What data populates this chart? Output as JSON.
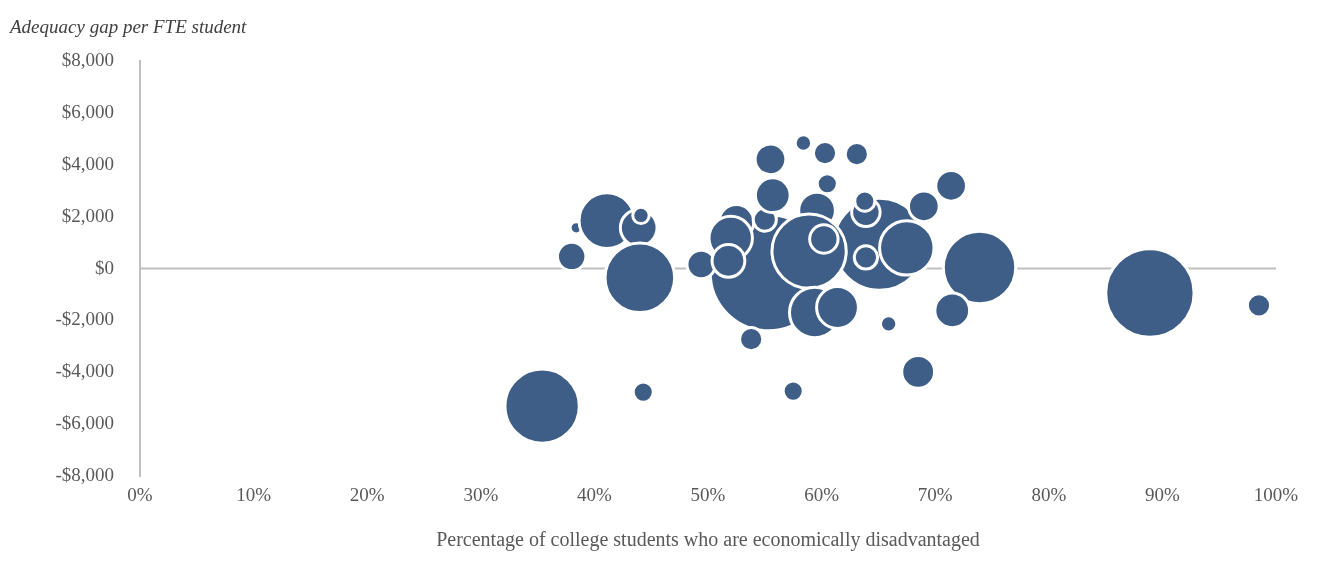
{
  "chart_data": {
    "type": "bubble",
    "title": "Adequacy gap per FTE student",
    "xlabel": "Percentage of college students who are economically disadvantaged",
    "color": "#3f5e87",
    "x": [
      55.3,
      65.1,
      35.4,
      38.0,
      38.4,
      41.1,
      43.9,
      44.1,
      44.0,
      44.3,
      49.4,
      52.5,
      52.0,
      51.8,
      55.0,
      55.5,
      55.7,
      58.4,
      60.3,
      63.1,
      60.5,
      59.6,
      58.9,
      59.4,
      60.2,
      61.4,
      63.9,
      63.8,
      63.9,
      67.5,
      69.0,
      71.4,
      73.9,
      71.5,
      65.9,
      68.5,
      57.5,
      53.8,
      88.9,
      98.5
    ],
    "values": [
      -160,
      940,
      -5300,
      470,
      1570,
      1850,
      1570,
      2050,
      -350,
      -4760,
      160,
      1800,
      1180,
      300,
      1890,
      4210,
      2830,
      4840,
      4450,
      4410,
      3270,
      2240,
      670,
      -1690,
      1140,
      -1500,
      2170,
      2600,
      430,
      800,
      2400,
      3190,
      40,
      -1610,
      -2130,
      -3980,
      -4720,
      -2720,
      -940,
      -1420
    ],
    "sizes": [
      1,
      0.63,
      0.41,
      0.06,
      0.011,
      0.23,
      0.1,
      0.02,
      0.36,
      0.03,
      0.06,
      0.09,
      0.14,
      0.08,
      0.04,
      0.07,
      0.09,
      0.02,
      0.04,
      0.04,
      0.03,
      0.1,
      0.41,
      0.19,
      0.06,
      0.13,
      0.06,
      0.03,
      0.04,
      0.22,
      0.07,
      0.07,
      0.39,
      0.09,
      0.02,
      0.08,
      0.03,
      0.04,
      0.58,
      0.04
    ],
    "xlim": [
      0,
      100
    ],
    "xticks": [
      {
        "value": 0,
        "label": "0%"
      },
      {
        "value": 10,
        "label": "10%"
      },
      {
        "value": 20,
        "label": "20%"
      },
      {
        "value": 30,
        "label": "30%"
      },
      {
        "value": 40,
        "label": "40%"
      },
      {
        "value": 50,
        "label": "50%"
      },
      {
        "value": 60,
        "label": "60%"
      },
      {
        "value": 70,
        "label": "70%"
      },
      {
        "value": 80,
        "label": "80%"
      },
      {
        "value": 90,
        "label": "90%"
      },
      {
        "value": 100,
        "label": "100%"
      }
    ],
    "ylim": [
      -8000,
      8000
    ],
    "yticks": [
      {
        "value": -8000,
        "label": "-$8,000"
      },
      {
        "value": -6000,
        "label": "-$6,000"
      },
      {
        "value": -4000,
        "label": "-$4,000"
      },
      {
        "value": -2000,
        "label": "-$2,000"
      },
      {
        "value": 0,
        "label": "$0"
      },
      {
        "value": 2000,
        "label": "$2,000"
      },
      {
        "value": 4000,
        "label": "$4,000"
      },
      {
        "value": 6000,
        "label": "$6,000"
      },
      {
        "value": 8000,
        "label": "$8,000"
      }
    ],
    "ref_lines": [
      {
        "axis": "y",
        "value": 0,
        "color": "#bfbfbf"
      }
    ],
    "grid": false,
    "legend": false
  }
}
